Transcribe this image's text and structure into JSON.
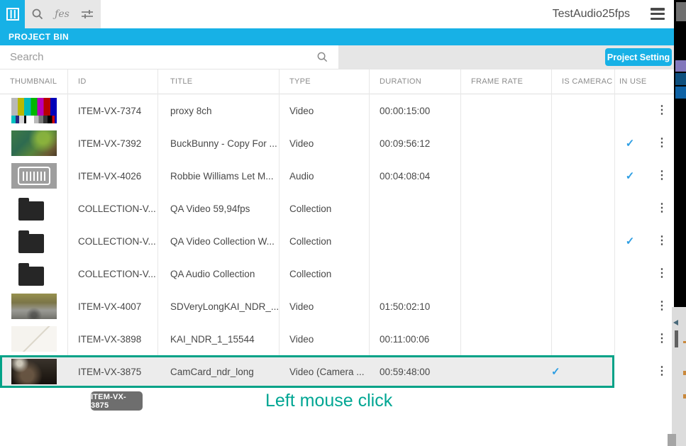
{
  "topbar": {
    "title": "TestAudio25fps"
  },
  "panel": {
    "title": "PROJECT BIN"
  },
  "search": {
    "placeholder": "Search",
    "value": ""
  },
  "actions": {
    "project_setting_label": "Project Setting"
  },
  "icons": {
    "film": "film-strip-icon",
    "fx_glyph": "ƒes",
    "check": "✓",
    "kebab": "⋮"
  },
  "colors": {
    "accent_cyan": "#17b1e6",
    "selection_teal": "#00a287",
    "caption_teal": "#00a693",
    "check_blue": "#2d9ee3"
  },
  "table": {
    "columns": [
      "THUMBNAIL",
      "ID",
      "TITLE",
      "TYPE",
      "DURATION",
      "FRAME RATE",
      "IS CAMERAC",
      "IN USE"
    ],
    "rows": [
      {
        "thumb": "smpte",
        "id": "ITEM-VX-7374",
        "title": "proxy 8ch",
        "type": "Video",
        "duration": "00:00:15:00",
        "frame_rate": "",
        "is_cameracard": false,
        "in_use": false,
        "selected": false
      },
      {
        "thumb": "forest",
        "id": "ITEM-VX-7392",
        "title": "BuckBunny - Copy For ...",
        "type": "Video",
        "duration": "00:09:56:12",
        "frame_rate": "",
        "is_cameracard": false,
        "in_use": true,
        "selected": false
      },
      {
        "thumb": "audio",
        "id": "ITEM-VX-4026",
        "title": "Robbie Williams Let M...",
        "type": "Audio",
        "duration": "00:04:08:04",
        "frame_rate": "",
        "is_cameracard": false,
        "in_use": true,
        "selected": false
      },
      {
        "thumb": "folder",
        "id": "COLLECTION-V...",
        "title": "QA Video 59,94fps",
        "type": "Collection",
        "duration": "",
        "frame_rate": "",
        "is_cameracard": false,
        "in_use": false,
        "selected": false
      },
      {
        "thumb": "folder",
        "id": "COLLECTION-V...",
        "title": "QA Video Collection W...",
        "type": "Collection",
        "duration": "",
        "frame_rate": "",
        "is_cameracard": false,
        "in_use": true,
        "selected": false
      },
      {
        "thumb": "folder",
        "id": "COLLECTION-V...",
        "title": "QA Audio Collection",
        "type": "Collection",
        "duration": "",
        "frame_rate": "",
        "is_cameracard": false,
        "in_use": false,
        "selected": false
      },
      {
        "thumb": "street",
        "id": "ITEM-VX-4007",
        "title": "SDVeryLongKAI_NDR_...",
        "type": "Video",
        "duration": "01:50:02:10",
        "frame_rate": "",
        "is_cameracard": false,
        "in_use": false,
        "selected": false
      },
      {
        "thumb": "light",
        "id": "ITEM-VX-3898",
        "title": "KAI_NDR_1_15544",
        "type": "Video",
        "duration": "00:11:00:06",
        "frame_rate": "",
        "is_cameracard": false,
        "in_use": false,
        "selected": false
      },
      {
        "thumb": "studio",
        "id": "ITEM-VX-3875",
        "title": "CamCard_ndr_long",
        "type": "Video (Camera ...",
        "duration": "00:59:48:00",
        "frame_rate": "",
        "is_cameracard": true,
        "in_use": false,
        "selected": true
      }
    ]
  },
  "overlay": {
    "drag_tag": "ITEM-VX-3875",
    "caption": "Left mouse click"
  }
}
